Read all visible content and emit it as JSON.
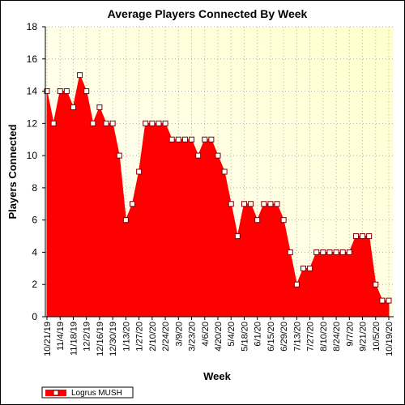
{
  "chart_data": {
    "type": "area",
    "title": "Average Players Connected By Week",
    "xlabel": "Week",
    "ylabel": "Players Connected",
    "ylim": [
      0,
      18
    ],
    "yticks": [
      0,
      2,
      4,
      6,
      8,
      10,
      12,
      14,
      16,
      18
    ],
    "grid": "dotted",
    "legend_position": "bottom-left",
    "colors": {
      "fill": "#ff0000",
      "line": "#ff0000",
      "marker_fill": "#ffffff",
      "marker_stroke": "#800000",
      "plot_bg_start": "#ffffff",
      "plot_bg_end": "#ffffcc"
    },
    "x_tick_labels": [
      "10/21/19",
      "11/4/19",
      "11/18/19",
      "12/2/19",
      "12/16/19",
      "12/30/19",
      "1/13/20",
      "1/27/20",
      "2/10/20",
      "2/24/20",
      "3/9/20",
      "3/23/20",
      "4/6/20",
      "4/20/20",
      "5/4/20",
      "5/18/20",
      "6/1/20",
      "6/15/20",
      "6/29/20",
      "7/13/20",
      "7/27/20",
      "8/10/20",
      "8/24/20",
      "9/7/20",
      "9/21/20",
      "10/5/20",
      "10/19/20"
    ],
    "series": [
      {
        "name": "Logrus MUSH",
        "x": [
          "10/21/19",
          "10/28/19",
          "11/4/19",
          "11/11/19",
          "11/18/19",
          "11/25/19",
          "12/2/19",
          "12/9/19",
          "12/16/19",
          "12/23/19",
          "12/30/19",
          "1/6/20",
          "1/13/20",
          "1/20/20",
          "1/27/20",
          "2/3/20",
          "2/10/20",
          "2/17/20",
          "2/24/20",
          "3/2/20",
          "3/9/20",
          "3/16/20",
          "3/23/20",
          "3/30/20",
          "4/6/20",
          "4/13/20",
          "4/20/20",
          "4/27/20",
          "5/4/20",
          "5/11/20",
          "5/18/20",
          "5/25/20",
          "6/1/20",
          "6/8/20",
          "6/15/20",
          "6/22/20",
          "6/29/20",
          "7/6/20",
          "7/13/20",
          "7/20/20",
          "7/27/20",
          "8/3/20",
          "8/10/20",
          "8/17/20",
          "8/24/20",
          "8/31/20",
          "9/7/20",
          "9/14/20",
          "9/21/20",
          "9/28/20",
          "10/5/20",
          "10/12/20",
          "10/19/20"
        ],
        "values": [
          14,
          12,
          14,
          14,
          13,
          15,
          14,
          12,
          13,
          12,
          12,
          10,
          6,
          7,
          9,
          12,
          12,
          12,
          12,
          11,
          11,
          11,
          11,
          10,
          11,
          11,
          10,
          9,
          7,
          5,
          7,
          7,
          6,
          7,
          7,
          7,
          6,
          4,
          2,
          3,
          3,
          4,
          4,
          4,
          4,
          4,
          4,
          5,
          5,
          5,
          2,
          1,
          1
        ]
      }
    ]
  }
}
